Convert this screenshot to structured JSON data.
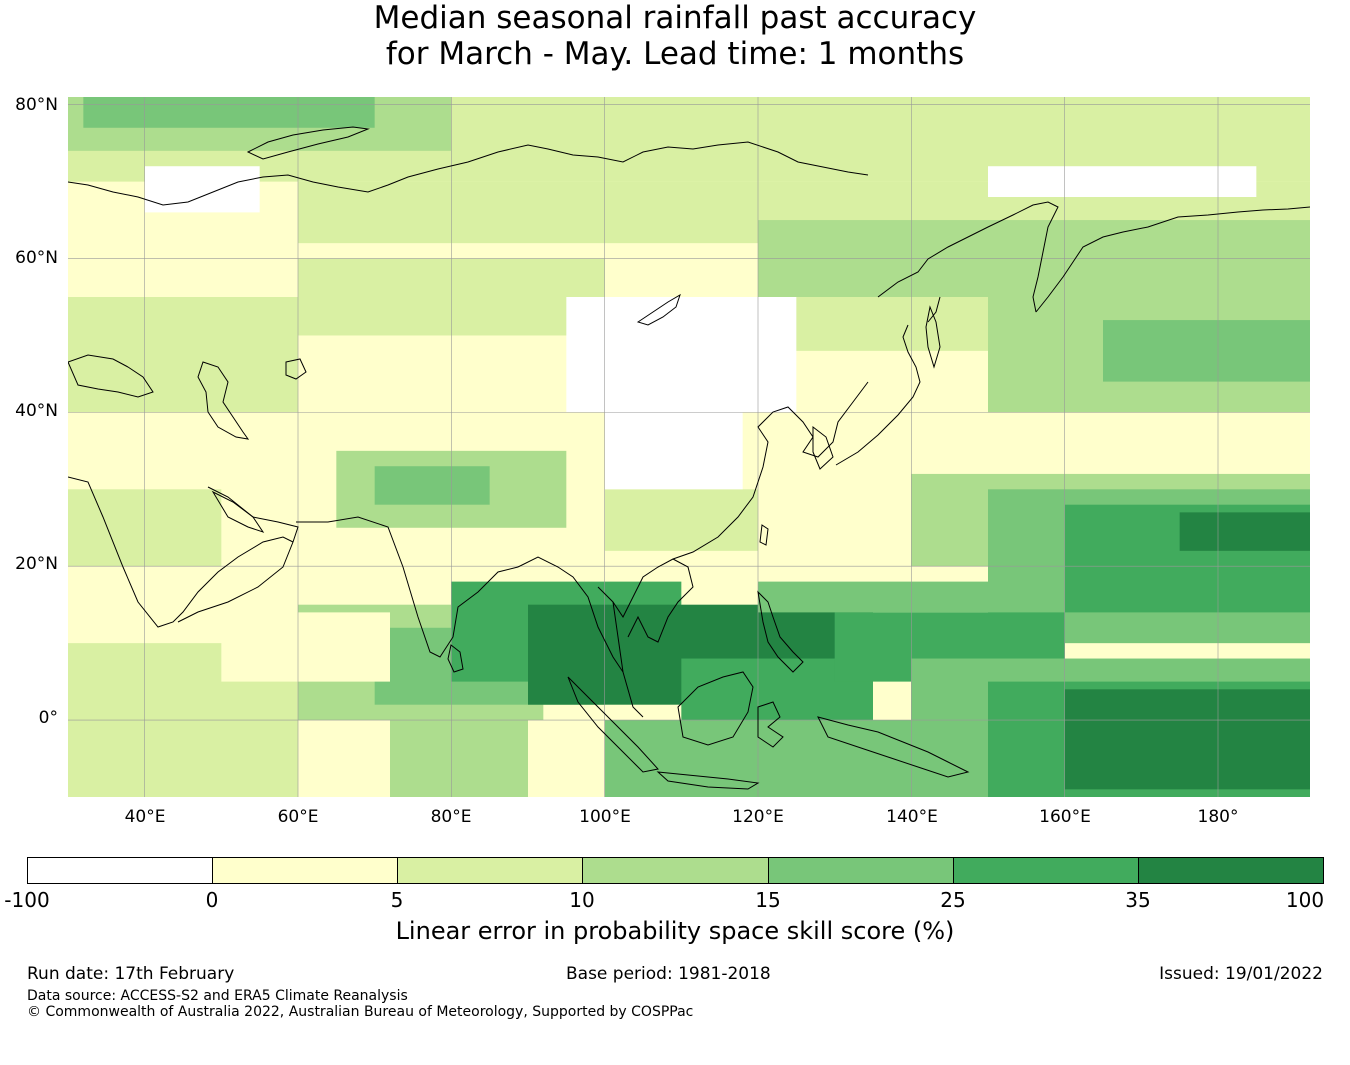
{
  "title": {
    "line1": "Median seasonal rainfall past accuracy",
    "line2": "for March - May. Lead time: 1 months"
  },
  "map": {
    "lat_labels": [
      "80°N",
      "60°N",
      "40°N",
      "20°N",
      "0°"
    ],
    "lon_labels": [
      "40°E",
      "60°E",
      "80°E",
      "100°E",
      "120°E",
      "140°E",
      "160°E",
      "180°"
    ],
    "extent": {
      "lon_range": [
        30,
        192
      ],
      "lat_range": [
        -10,
        81
      ]
    },
    "colors": {
      "lt0": "#ffffff",
      "0_5": "#ffffcc",
      "5_10": "#d9f0a3",
      "10_15": "#addd8e",
      "15_25": "#78c679",
      "25_35": "#41ab5d",
      "35_100": "#238443",
      "coastline": "#000000",
      "gridline": "#999999"
    }
  },
  "colorbar": {
    "tick_labels": [
      "-100",
      "0",
      "5",
      "10",
      "15",
      "25",
      "35",
      "100"
    ],
    "title": "Linear error in probability space skill score (%)"
  },
  "footer": {
    "run_date": "Run date: 17th February",
    "base_period": "Base period: 1981-2018",
    "issued": "Issued: 19/01/2022",
    "data_source": "Data source: ACCESS-S2 and ERA5 Climate Reanalysis",
    "copyright": "© Commonwealth of Australia 2022, Australian Bureau of Meteorology, Supported by COSPPac"
  }
}
